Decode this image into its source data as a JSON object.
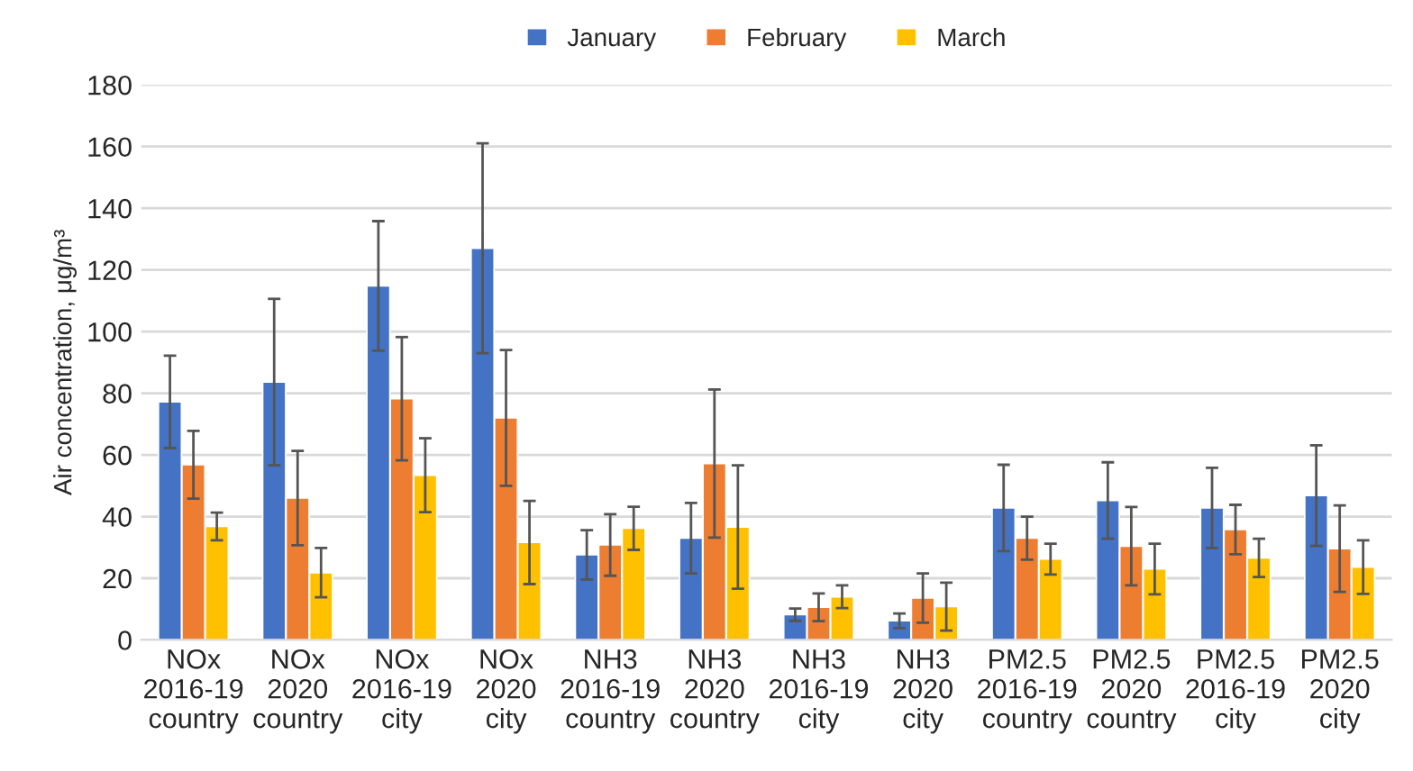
{
  "chart_data": {
    "type": "bar",
    "ylabel": "Air concentration, μg/m³",
    "categories": [
      "NOx\n2016-19\ncountry",
      "NOx\n2020\ncountry",
      "NOx\n2016-19\ncity",
      "NOx\n2020\ncity",
      "NH3\n2016-19\ncountry",
      "NH3\n2020\ncountry",
      "NH3\n2016-19\ncity",
      "NH3\n2020\ncity",
      "PM2.5\n2016-19\ncountry",
      "PM2.5\n2020\ncountry",
      "PM2.5\n2016-19\ncity",
      "PM2.5\n2020\ncity"
    ],
    "series": [
      {
        "name": "January",
        "color": "#4472c4",
        "values": [
          77.2,
          83.6,
          114.8,
          127,
          27.6,
          33,
          8.2,
          6.2,
          42.8,
          45.2,
          42.8,
          46.8
        ],
        "errors": [
          15,
          27,
          21,
          34,
          8,
          11.4,
          2,
          2.4,
          14,
          12.4,
          13,
          16.3
        ]
      },
      {
        "name": "February",
        "color": "#ed7d31",
        "values": [
          56.8,
          46,
          78.2,
          72,
          30.8,
          57.2,
          10.6,
          13.6,
          33,
          30.4,
          35.8,
          29.6
        ],
        "errors": [
          11,
          15.3,
          20,
          22,
          10,
          24,
          4.5,
          8,
          7,
          12.7,
          8,
          14
        ]
      },
      {
        "name": "March",
        "color": "#ffc000",
        "values": [
          36.8,
          21.8,
          53.4,
          31.6,
          36.2,
          36.6,
          14,
          10.8,
          26.2,
          23,
          26.6,
          23.6
        ],
        "errors": [
          4.5,
          8,
          12,
          13.5,
          7,
          20,
          3.7,
          7.8,
          5,
          8.2,
          6.2,
          8.7
        ]
      }
    ],
    "ylim": [
      0,
      180
    ],
    "yticks": [
      0,
      20,
      40,
      60,
      80,
      100,
      120,
      140,
      160,
      180
    ],
    "grid": "y",
    "legend": "top"
  }
}
